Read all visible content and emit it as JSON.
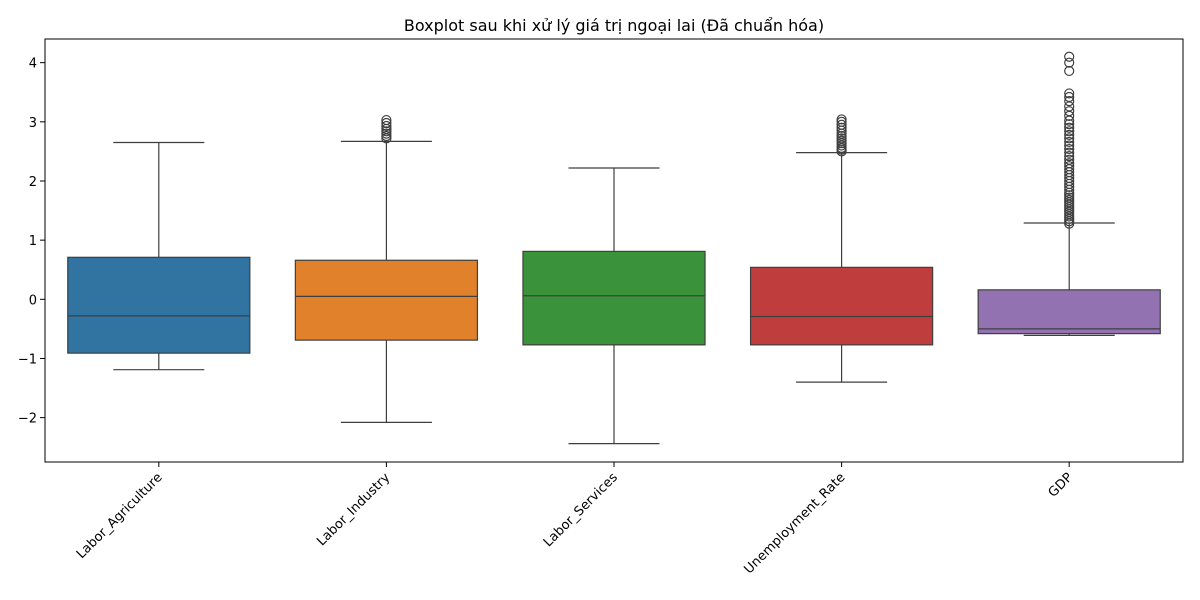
{
  "chart_data": {
    "type": "box",
    "title": "Boxplot sau khi xử lý giá trị ngoại lai (Đã chuẩn hóa)",
    "xlabel": "",
    "ylabel": "",
    "ylim": [
      -2.75,
      4.4
    ],
    "yticks": [
      -2,
      -1,
      0,
      1,
      2,
      3,
      4
    ],
    "grid": false,
    "categories": [
      "Labor_Agriculture",
      "Labor_Industry",
      "Labor_Services",
      "Unemployment_Rate",
      "GDP"
    ],
    "series": [
      {
        "category": "Labor_Agriculture",
        "color": "#3274a1",
        "whisker_low": -1.19,
        "q1": -0.91,
        "median": -0.28,
        "q3": 0.71,
        "whisker_high": 2.65,
        "outliers": []
      },
      {
        "category": "Labor_Industry",
        "color": "#e1812c",
        "whisker_low": -2.08,
        "q1": -0.69,
        "median": 0.05,
        "q3": 0.66,
        "whisker_high": 2.67,
        "outliers": [
          2.72,
          2.76,
          2.8,
          2.84,
          2.88,
          2.93,
          2.98,
          3.03
        ]
      },
      {
        "category": "Labor_Services",
        "color": "#3a923a",
        "whisker_low": -2.44,
        "q1": -0.77,
        "median": 0.06,
        "q3": 0.81,
        "whisker_high": 2.22,
        "outliers": []
      },
      {
        "category": "Unemployment_Rate",
        "color": "#c03d3e",
        "whisker_low": -1.4,
        "q1": -0.77,
        "median": -0.29,
        "q3": 0.54,
        "whisker_high": 2.48,
        "outliers": [
          2.5,
          2.53,
          2.56,
          2.6,
          2.64,
          2.68,
          2.72,
          2.76,
          2.8,
          2.85,
          2.9,
          2.95,
          3.0,
          3.04
        ]
      },
      {
        "category": "GDP",
        "color": "#9372b2",
        "whisker_low": -0.61,
        "q1": -0.58,
        "median": -0.5,
        "q3": 0.16,
        "whisker_high": 1.29,
        "outliers": [
          1.28,
          1.32,
          1.36,
          1.4,
          1.44,
          1.48,
          1.52,
          1.56,
          1.6,
          1.64,
          1.68,
          1.72,
          1.76,
          1.8,
          1.85,
          1.9,
          1.95,
          2.0,
          2.05,
          2.1,
          2.15,
          2.2,
          2.25,
          2.3,
          2.36,
          2.42,
          2.48,
          2.54,
          2.6,
          2.66,
          2.72,
          2.78,
          2.84,
          2.9,
          2.96,
          3.02,
          3.1,
          3.18,
          3.26,
          3.35,
          3.42,
          3.48,
          3.86,
          4.0,
          4.1
        ]
      }
    ]
  }
}
